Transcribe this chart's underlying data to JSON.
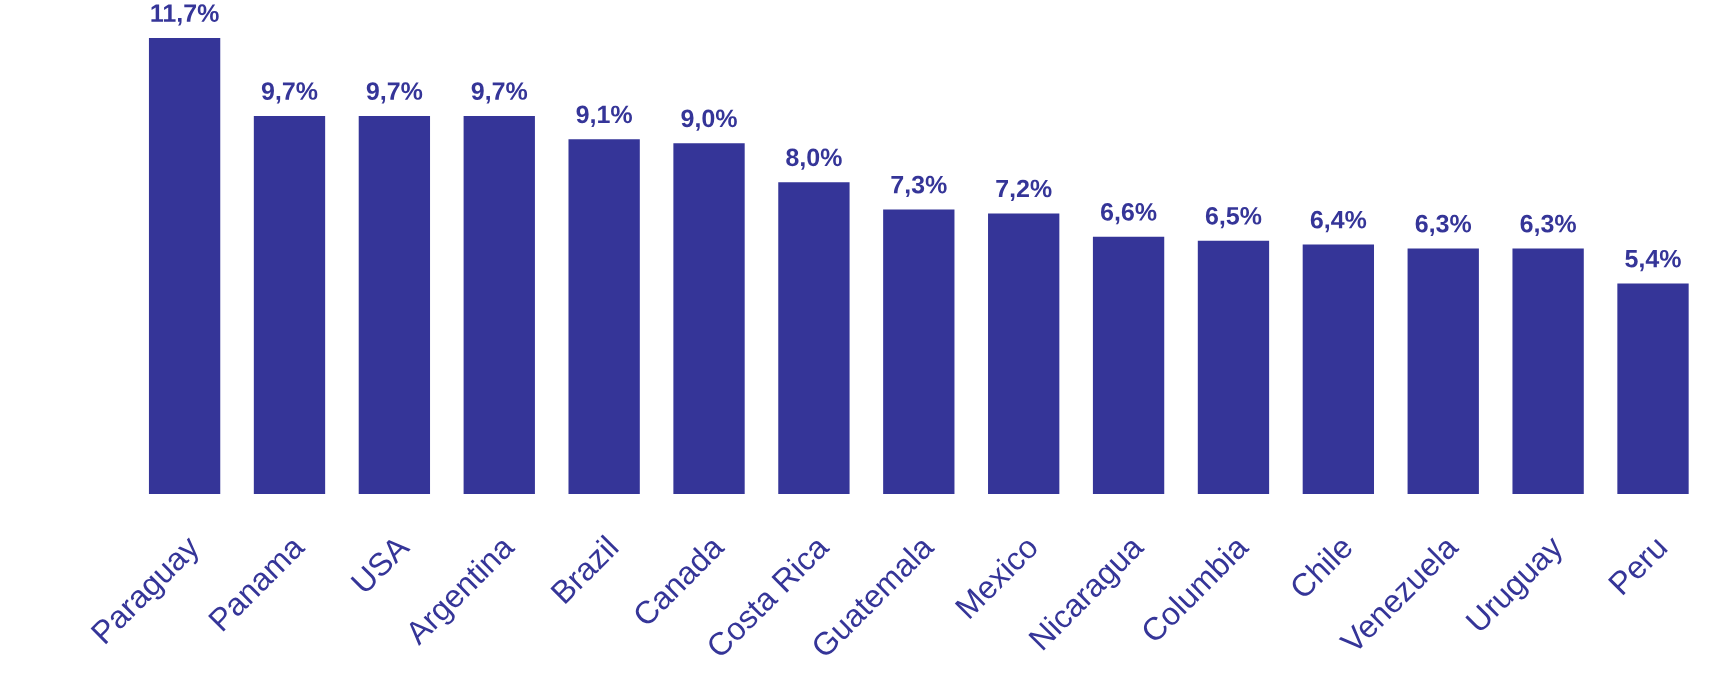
{
  "chart_data": {
    "type": "bar",
    "categories": [
      "Paraguay",
      "Panama",
      "USA",
      "Argentina",
      "Brazil",
      "Canada",
      "Costa Rica",
      "Guatemala",
      "Mexico",
      "Nicaragua",
      "Columbia",
      "Chile",
      "Venezuela",
      "Uruguay",
      "Peru"
    ],
    "values": [
      11.7,
      9.7,
      9.7,
      9.7,
      9.1,
      9.0,
      8.0,
      7.3,
      7.2,
      6.6,
      6.5,
      6.4,
      6.3,
      6.3,
      5.4
    ],
    "value_labels": [
      "11,7%",
      "9,7%",
      "9,7%",
      "9,7%",
      "9,1%",
      "9,0%",
      "8,0%",
      "7,3%",
      "7,2%",
      "6,6%",
      "6,5%",
      "6,4%",
      "6,3%",
      "6,3%",
      "5,4%"
    ],
    "color": "#353598",
    "grid": false,
    "legend": false
  }
}
